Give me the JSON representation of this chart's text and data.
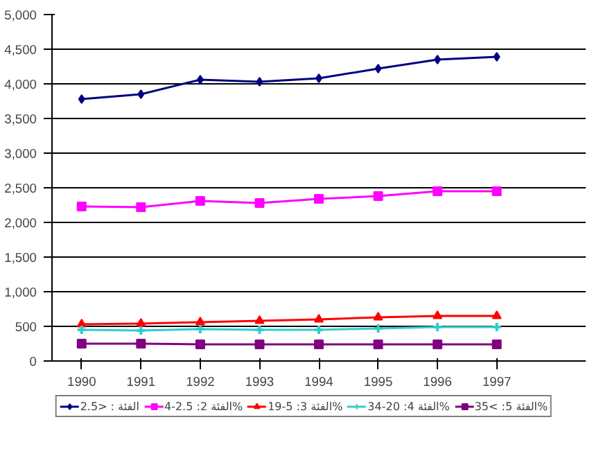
{
  "chart_data": {
    "type": "line",
    "categories": [
      "1990",
      "1991",
      "1992",
      "1993",
      "1994",
      "1995",
      "1996",
      "1997"
    ],
    "series": [
      {
        "name": "الفئة : <2.5",
        "color": "#000080",
        "marker": "diamond",
        "values": [
          3780,
          3850,
          4060,
          4030,
          4080,
          4220,
          4350,
          4390
        ]
      },
      {
        "name": "الفئة 2: 2.5-4%",
        "color": "#ff00ff",
        "marker": "square",
        "values": [
          2230,
          2220,
          2310,
          2280,
          2340,
          2380,
          2450,
          2450
        ]
      },
      {
        "name": "الفئة 3: 5-19%",
        "color": "#ff0000",
        "marker": "triangle",
        "values": [
          530,
          540,
          560,
          580,
          600,
          630,
          650,
          650
        ]
      },
      {
        "name": "الفئة 4: 20-34%",
        "color": "#33cccc",
        "marker": "cross",
        "values": [
          450,
          440,
          460,
          450,
          450,
          470,
          490,
          490
        ]
      },
      {
        "name": "الفئة 5: >35%",
        "color": "#800080",
        "marker": "square",
        "values": [
          250,
          250,
          240,
          240,
          240,
          240,
          240,
          240
        ]
      }
    ],
    "ylim": [
      0,
      5000
    ],
    "yticks": [
      {
        "value": 0,
        "label": "0"
      },
      {
        "value": 500,
        "label": "500"
      },
      {
        "value": 1000,
        "label": "1,000"
      },
      {
        "value": 1500,
        "label": "1,500"
      },
      {
        "value": 2000,
        "label": "2,000"
      },
      {
        "value": 2500,
        "label": "2,500"
      },
      {
        "value": 3000,
        "label": "3,000"
      },
      {
        "value": 3500,
        "label": "3,500"
      },
      {
        "value": 4000,
        "label": "4,000"
      },
      {
        "value": 4500,
        "label": "4,500"
      },
      {
        "value": 5000,
        "label": "5,000"
      }
    ],
    "grid": "y",
    "legend": "bottom",
    "line_style": "solid"
  }
}
